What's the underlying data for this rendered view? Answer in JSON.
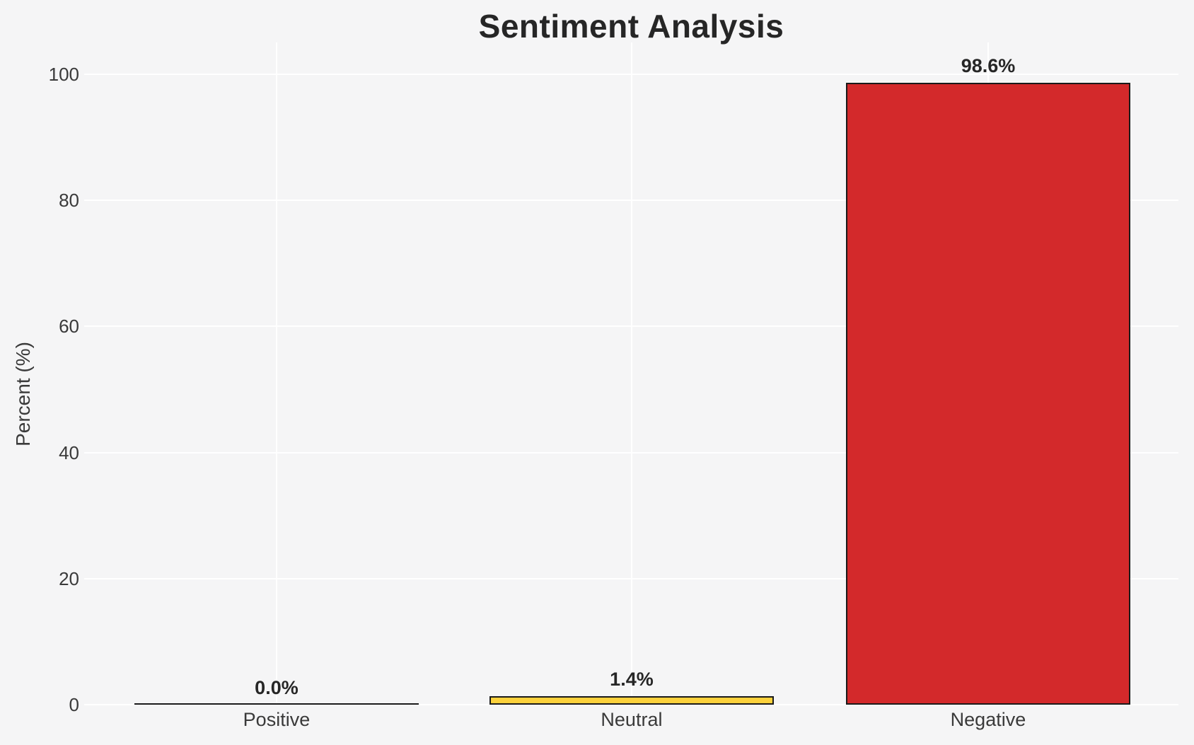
{
  "chart_data": {
    "type": "bar",
    "title": "Sentiment Analysis",
    "xlabel": "",
    "ylabel": "Percent (%)",
    "categories": [
      "Positive",
      "Neutral",
      "Negative"
    ],
    "values": [
      0.0,
      1.4,
      98.6
    ],
    "value_labels": [
      "0.0%",
      "1.4%",
      "98.6%"
    ],
    "bar_colors": [
      "none",
      "#fcd13c",
      "#d3292b"
    ],
    "bar_edge_color": "#1a1a1a",
    "yticks": [
      0,
      20,
      40,
      60,
      80,
      100
    ],
    "ylim": [
      0,
      105
    ],
    "grid": true,
    "gridline_color": "#ffffff",
    "background_color": "#f5f5f6",
    "legend": "none"
  }
}
